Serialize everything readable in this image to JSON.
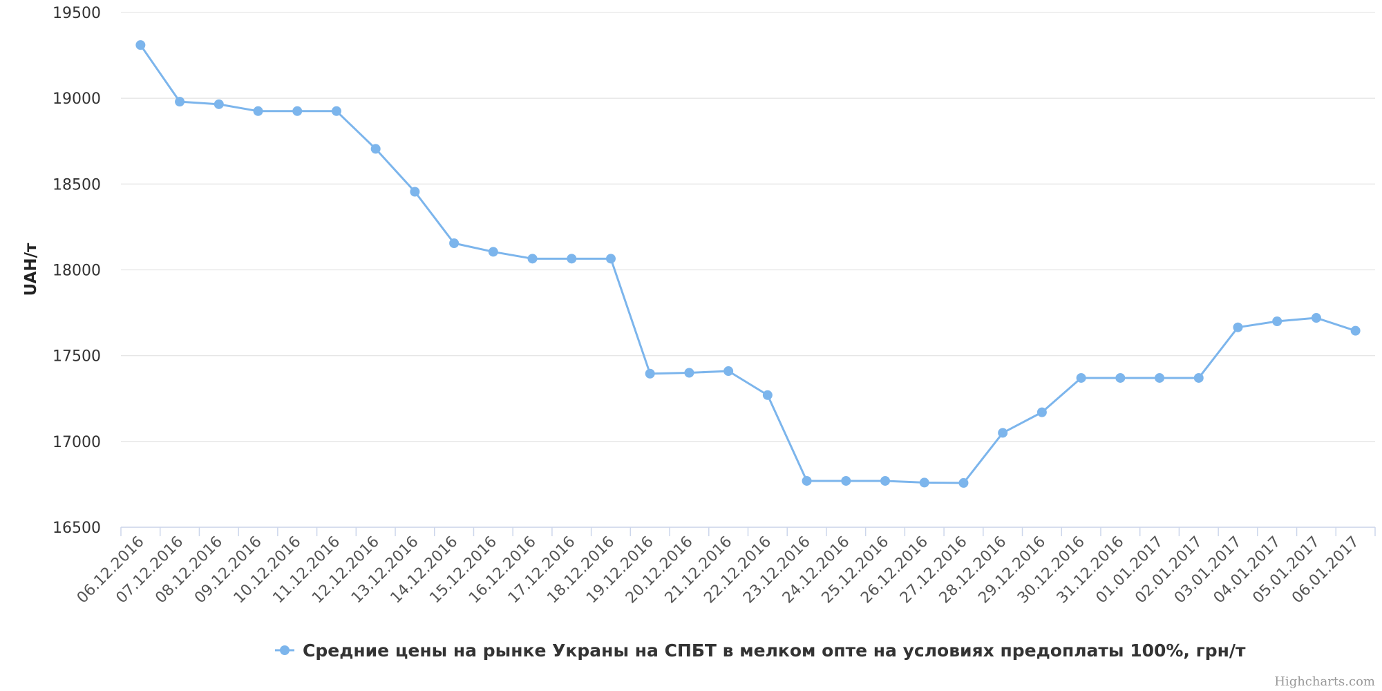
{
  "chart_data": {
    "type": "line",
    "title": "",
    "xlabel": "",
    "ylabel": "UAH/т",
    "ylim": [
      16500,
      19500
    ],
    "yticks": [
      16500,
      17000,
      17500,
      18000,
      18500,
      19000,
      19500
    ],
    "grid": true,
    "legend_position": "bottom-center",
    "categories": [
      "06.12.2016",
      "07.12.2016",
      "08.12.2016",
      "09.12.2016",
      "10.12.2016",
      "11.12.2016",
      "12.12.2016",
      "13.12.2016",
      "14.12.2016",
      "15.12.2016",
      "16.12.2016",
      "17.12.2016",
      "18.12.2016",
      "19.12.2016",
      "20.12.2016",
      "21.12.2016",
      "22.12.2016",
      "23.12.2016",
      "24.12.2016",
      "25.12.2016",
      "26.12.2016",
      "27.12.2016",
      "28.12.2016",
      "29.12.2016",
      "30.12.2016",
      "31.12.2016",
      "01.01.2017",
      "02.01.2017",
      "03.01.2017",
      "04.01.2017",
      "05.01.2017",
      "06.01.2017"
    ],
    "series": [
      {
        "name": "Средние цены на рынке Украны на СПБТ в мелком опте на условиях предоплаты 100%, грн/т",
        "color": "#7cb5ec",
        "values": [
          19310,
          18980,
          18965,
          18925,
          18925,
          18925,
          18705,
          18455,
          18155,
          18105,
          18065,
          18065,
          18065,
          17395,
          17400,
          17410,
          17270,
          16770,
          16770,
          16770,
          16760,
          16758,
          17050,
          17170,
          17370,
          17370,
          17370,
          17370,
          17665,
          17700,
          17720,
          17645
        ]
      }
    ]
  },
  "credits": "Highcharts.com",
  "colors": {
    "grid": "#e6e6e6",
    "axis": "#ccd6eb",
    "series": "#7cb5ec"
  }
}
